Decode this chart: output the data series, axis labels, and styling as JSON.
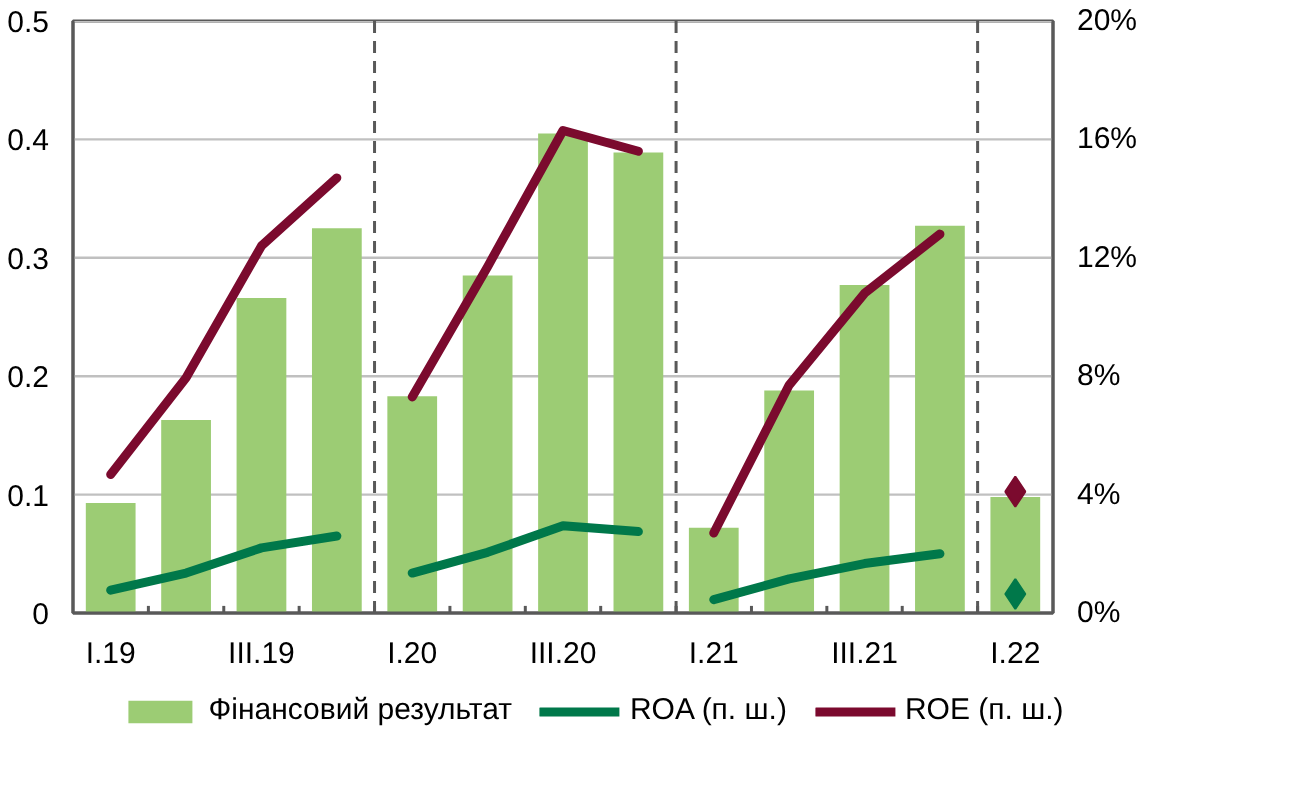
{
  "chart_data": {
    "type": "bar",
    "categories": [
      "I.19",
      null,
      "III.19",
      null,
      "I.20",
      null,
      "III.20",
      null,
      "I.21",
      null,
      "III.21",
      null,
      "I.22"
    ],
    "series": [
      {
        "name": "Фінансовий результат",
        "color": "#9ccc74",
        "values": [
          0.093,
          0.163,
          0.266,
          0.325,
          0.183,
          0.285,
          0.405,
          0.389,
          0.072,
          0.188,
          0.277,
          0.327,
          0.098
        ]
      },
      {
        "name": "ROA (п. ш.)",
        "type": "line",
        "axis": "y2",
        "color": "#00784a",
        "values": [
          0.77,
          1.35,
          2.2,
          2.6,
          null,
          null,
          null,
          null,
          null,
          null,
          null,
          null,
          null
        ]
      },
      {
        "type": "line",
        "axis": "y2",
        "color": "#00784a",
        "values": [
          null,
          null,
          null,
          null,
          1.35,
          2.05,
          2.95,
          2.75,
          null,
          null,
          null,
          null,
          null
        ]
      },
      {
        "type": "line",
        "axis": "y2",
        "color": "#00784a",
        "values": [
          null,
          null,
          null,
          null,
          null,
          null,
          null,
          null,
          0.45,
          1.15,
          1.67,
          2.0,
          null
        ]
      },
      {
        "type": "scatter",
        "axis": "y2",
        "marker": "diamond",
        "color": "#00784a",
        "values": [
          null,
          null,
          null,
          null,
          null,
          null,
          null,
          null,
          null,
          null,
          null,
          null,
          0.64
        ]
      },
      {
        "name": "ROE (п. ш.)",
        "type": "line",
        "axis": "y2",
        "color": "#7b0a2e",
        "values": [
          4.68,
          7.95,
          12.4,
          14.7,
          null,
          null,
          null,
          null,
          null,
          null,
          null,
          null,
          null
        ]
      },
      {
        "type": "line",
        "axis": "y2",
        "color": "#7b0a2e",
        "values": [
          null,
          null,
          null,
          null,
          7.3,
          11.7,
          16.3,
          15.6,
          null,
          null,
          null,
          null,
          null
        ]
      },
      {
        "type": "line",
        "axis": "y2",
        "color": "#7b0a2e",
        "values": [
          null,
          null,
          null,
          null,
          null,
          null,
          null,
          null,
          2.7,
          7.7,
          10.8,
          12.8,
          null
        ]
      },
      {
        "type": "scatter",
        "axis": "y2",
        "marker": "diamond",
        "color": "#7b0a2e",
        "values": [
          null,
          null,
          null,
          null,
          null,
          null,
          null,
          null,
          null,
          null,
          null,
          null,
          4.1
        ]
      }
    ],
    "ylim": [
      0,
      0.5
    ],
    "yticks": [
      0,
      0.1,
      0.2,
      0.3,
      0.4,
      0.5
    ],
    "y2lim": [
      0,
      20
    ],
    "y2ticks": [
      {
        "value": 0,
        "label": "0%"
      },
      {
        "value": 4,
        "label": "4%"
      },
      {
        "value": 8,
        "label": "8%"
      },
      {
        "value": 12,
        "label": "12%"
      },
      {
        "value": 16,
        "label": "16%"
      },
      {
        "value": 20,
        "label": "20%"
      }
    ],
    "grid": "y",
    "legend": "bottom"
  }
}
